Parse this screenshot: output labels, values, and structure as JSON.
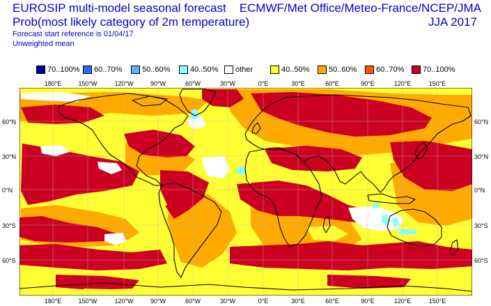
{
  "header": {
    "title_line1": "EUROSIP multi-model seasonal forecast",
    "title_line2": "Prob(most likely category of 2m temperature)",
    "subtitle_line1": "Forecast start reference is 01/04/17",
    "subtitle_line2": "Unweighted mean",
    "centres": "ECMWF/Met Office/Meteo-France/NCEP/JMA",
    "season": "JJA 2017"
  },
  "legend": [
    {
      "label": "70..100%",
      "color": "#000099"
    },
    {
      "label": "60..70%",
      "color": "#3366ff"
    },
    {
      "label": "50..60%",
      "color": "#66aaff"
    },
    {
      "label": "40..50%",
      "color": "#88ffff"
    },
    {
      "label": "other",
      "color": "#ffffff"
    },
    {
      "label": "40..50%",
      "color": "#ffff33"
    },
    {
      "label": "50..60%",
      "color": "#ffaa00"
    },
    {
      "label": "60..70%",
      "color": "#ff5500"
    },
    {
      "label": "70..100%",
      "color": "#cc0022"
    }
  ],
  "axes": {
    "lon_labels": [
      "180°E",
      "150°W",
      "120°W",
      "90°W",
      "60°W",
      "30°W",
      "0°E",
      "30°E",
      "60°E",
      "90°E",
      "120°E",
      "150°E"
    ],
    "lat_labels": [
      "60°N",
      "30°N",
      "0°N",
      "30°S",
      "60°S"
    ]
  },
  "map": {
    "background_color": "#ffff33",
    "land_outline_color": "#000000",
    "grid_color": "#bbbbbb"
  }
}
